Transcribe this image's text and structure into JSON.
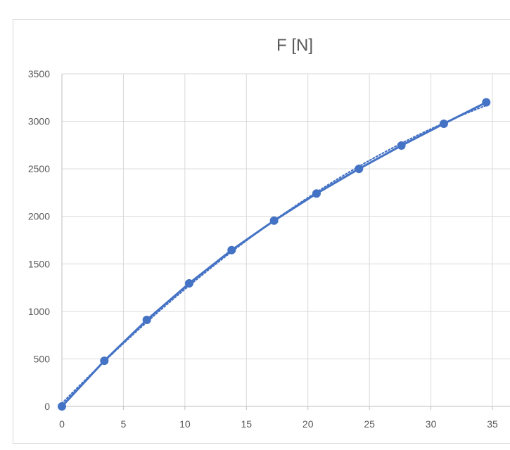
{
  "chart_data": {
    "type": "line",
    "title": "F [N]",
    "xlabel": "",
    "ylabel": "",
    "xlim": [
      0,
      35
    ],
    "ylim": [
      0,
      3500
    ],
    "x_ticks": [
      0,
      5,
      10,
      15,
      20,
      25,
      30,
      35
    ],
    "y_ticks": [
      0,
      500,
      1000,
      1500,
      2000,
      2500,
      3000,
      3500
    ],
    "grid": true,
    "legend": "none",
    "series": [
      {
        "x": [
          0,
          3.45,
          6.9,
          10.35,
          13.8,
          17.25,
          20.7,
          24.15,
          27.6,
          31.05,
          34.5
        ],
        "y": [
          0,
          480,
          910,
          1295,
          1645,
          1955,
          2240,
          2500,
          2745,
          2975,
          3200
        ],
        "color": "#4472c4",
        "markers": true
      }
    ],
    "trendline": {
      "style": "dotted",
      "color": "#4472c4",
      "kind": "polynomial"
    }
  }
}
